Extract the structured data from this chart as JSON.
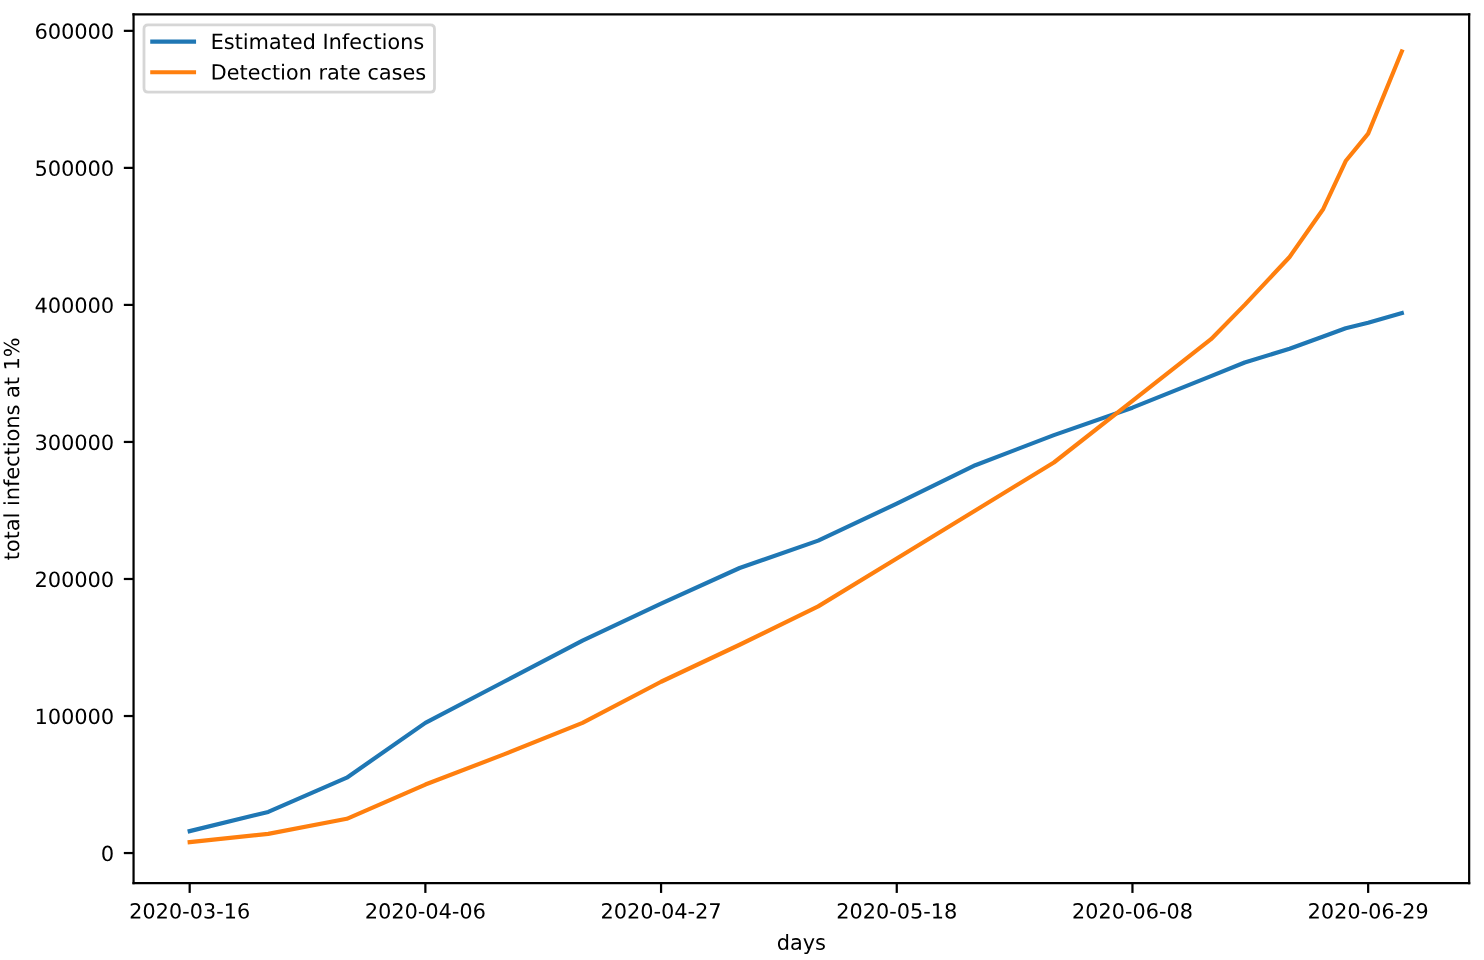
{
  "chart_data": {
    "type": "line",
    "xlabel": "days",
    "ylabel": "total infections at 1%",
    "x": [
      "2020-03-16",
      "2020-03-23",
      "2020-03-30",
      "2020-04-06",
      "2020-04-13",
      "2020-04-20",
      "2020-04-27",
      "2020-05-04",
      "2020-05-11",
      "2020-05-18",
      "2020-05-25",
      "2020-06-01",
      "2020-06-08",
      "2020-06-15",
      "2020-06-18",
      "2020-06-22",
      "2020-06-25",
      "2020-06-27",
      "2020-06-29",
      "2020-07-02"
    ],
    "series": [
      {
        "name": "Estimated Infections",
        "color": "#1f77b4",
        "values": [
          16000,
          30000,
          55000,
          95000,
          125000,
          155000,
          182000,
          208000,
          228000,
          255000,
          283000,
          305000,
          325000,
          348000,
          358000,
          368000,
          377000,
          383000,
          387000,
          394000
        ]
      },
      {
        "name": "Detection rate cases",
        "color": "#ff7f0e",
        "values": [
          8000,
          14000,
          25000,
          50000,
          72000,
          95000,
          125000,
          152000,
          180000,
          215000,
          250000,
          285000,
          330000,
          375000,
          400000,
          435000,
          470000,
          505000,
          525000,
          585000
        ]
      }
    ],
    "xlim": [
      "2020-03-11",
      "2020-07-08"
    ],
    "xticks": [
      {
        "value": "2020-03-16",
        "label": "2020-03-16"
      },
      {
        "value": "2020-04-06",
        "label": "2020-04-06"
      },
      {
        "value": "2020-04-27",
        "label": "2020-04-27"
      },
      {
        "value": "2020-05-18",
        "label": "2020-05-18"
      },
      {
        "value": "2020-06-08",
        "label": "2020-06-08"
      },
      {
        "value": "2020-06-29",
        "label": "2020-06-29"
      }
    ],
    "ylim": [
      -22000,
      612000
    ],
    "yticks": [
      0,
      100000,
      200000,
      300000,
      400000,
      500000,
      600000
    ],
    "legend": "top left",
    "grid": false
  }
}
